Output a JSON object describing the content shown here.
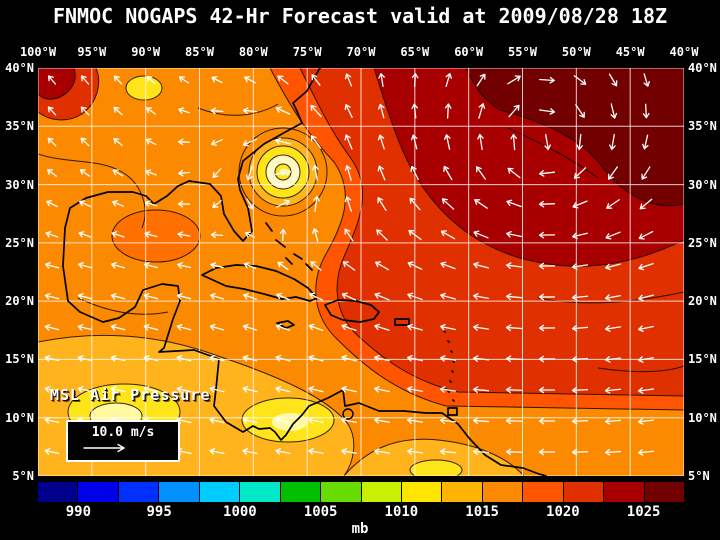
{
  "title": "FNMOC NOGAPS 42-Hr Forecast valid at 2009/08/28 18Z",
  "map": {
    "lon_labels": [
      "100°W",
      "95°W",
      "90°W",
      "85°W",
      "80°W",
      "75°W",
      "70°W",
      "65°W",
      "60°W",
      "55°W",
      "50°W",
      "45°W",
      "40°W"
    ],
    "lat_labels_left": [
      "40°N",
      "35°N",
      "30°N",
      "25°N",
      "20°N",
      "15°N",
      "10°N",
      "5°N"
    ],
    "lat_labels_right": [
      "40°N",
      "35°N",
      "30°N",
      "25°N",
      "20°N",
      "15°N",
      "10°N",
      "5°N"
    ],
    "field_label": "MSL Air Pressure",
    "wind_scale": {
      "label": "10.0 m/s",
      "speed_mps": 10.0
    }
  },
  "colorbar": {
    "unit": "mb",
    "tick_labels": [
      "990",
      "995",
      "1000",
      "1005",
      "1010",
      "1015",
      "1020",
      "1025"
    ],
    "tick_values_mb": [
      990,
      995,
      1000,
      1005,
      1010,
      1015,
      1020,
      1025
    ],
    "range_mb": [
      987.5,
      1027.5
    ],
    "interval_mb": 2.5,
    "segment_colors": [
      "#00008c",
      "#0000e8",
      "#0030ff",
      "#0090ff",
      "#00ccff",
      "#00e8c8",
      "#00be00",
      "#66dc00",
      "#c8f000",
      "#ffe400",
      "#ffb400",
      "#fc8a00",
      "#ff5400",
      "#e03000",
      "#a80000",
      "#730000"
    ]
  },
  "chart_data": {
    "type": "heatmap",
    "title": "FNMOC NOGAPS 42-Hr Forecast valid at 2009/08/28 18Z",
    "source": "FNMOC",
    "model": "NOGAPS",
    "forecast_hour": 42,
    "valid_time": "2009/08/28 18Z",
    "variable": "MSL Air Pressure",
    "units": "mb",
    "x_axis": {
      "side": "top",
      "ticks": [
        "100°W",
        "95°W",
        "90°W",
        "85°W",
        "80°W",
        "75°W",
        "70°W",
        "65°W",
        "60°W",
        "55°W",
        "50°W",
        "45°W",
        "40°W"
      ]
    },
    "y_axis": {
      "sides": [
        "left",
        "right"
      ],
      "ticks": [
        "40°N",
        "35°N",
        "30°N",
        "25°N",
        "20°N",
        "15°N",
        "10°N",
        "5°N"
      ]
    },
    "colorbar_ticks_mb": [
      990,
      995,
      1000,
      1005,
      1010,
      1015,
      1020,
      1025
    ],
    "overlay": "surface wind vectors shown as white arrows, reference arrow 10.0 m/s",
    "grid": true,
    "legend_position": "bottom colorbar",
    "notable_features": [
      {
        "feature": "closed tropical cyclone circulation with concentric isobars (center ~1006-1008 mb) near 31°N 78°W off the southeastern U.S. coast"
      },
      {
        "feature": "strong subtropical high pressure (>1025 mb, dark red/maroon shading) over the central North Atlantic in the northeast quadrant with clockwise wind flow"
      },
      {
        "feature": "broad easterly/westward trade-wind flow (~1015-1020 mb, red shading) across the tropical Atlantic and Caribbean"
      },
      {
        "feature": "lower pressure (~1008-1010 mb, yellow shading) over Central America, the far eastern Pacific and northern South America"
      },
      {
        "feature": "pressure over Gulf of Mexico and western Caribbean around 1012-1015 mb (orange shading)"
      }
    ]
  }
}
